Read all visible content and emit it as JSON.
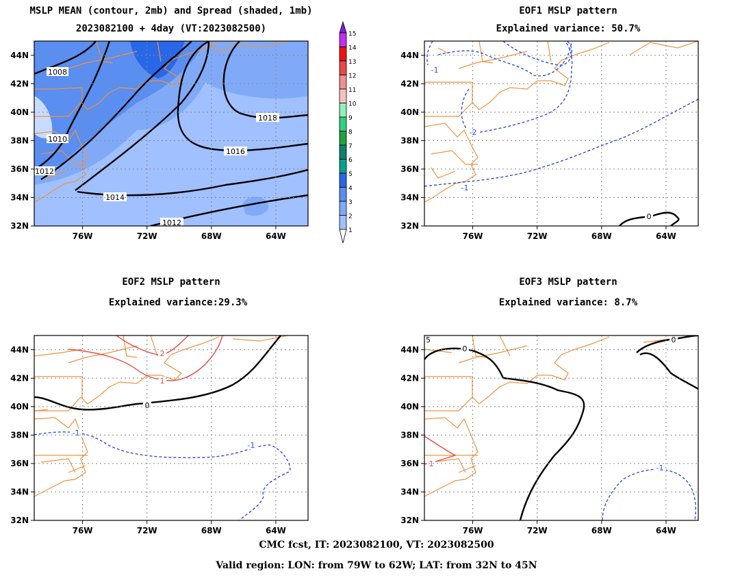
{
  "footer": {
    "line1": "CMC fcst, IT: 2023082100, VT: 2023082500",
    "line2": "Valid region: LON: from 79W to 62W; LAT: from 32N to 45N"
  },
  "colorbar": {
    "levels": [
      "1",
      "2",
      "3",
      "4",
      "5",
      "6",
      "7",
      "8",
      "9",
      "10",
      "11",
      "12",
      "13",
      "14",
      "15"
    ],
    "colors": [
      "#c8dcff",
      "#a0c0ff",
      "#80aaf8",
      "#5a8ef0",
      "#2868e8",
      "#08a090",
      "#108070",
      "#20a040",
      "#30d080",
      "#90f0c0",
      "#f8c0c0",
      "#f09090",
      "#e84848",
      "#f01010",
      "#c030f0",
      "#8020d0"
    ]
  },
  "chart_data": [
    {
      "type": "contour",
      "title": "MSLP MEAN (contour, 2mb) and Spread (shaded, 1mb)",
      "subtitle": "2023082100 + 4day (VT:2023082500)",
      "x_ticks": [
        "76W",
        "72W",
        "68W",
        "64W"
      ],
      "y_ticks": [
        "44N",
        "42N",
        "40N",
        "38N",
        "36N",
        "34N",
        "32N"
      ],
      "xlim": [
        -79,
        -62
      ],
      "ylim": [
        32,
        45
      ],
      "contour_labels": [
        "1008",
        "1010",
        "1012",
        "1014",
        "1016",
        "1018",
        "1012"
      ]
    },
    {
      "type": "contour",
      "title": "EOF1 MSLP pattern",
      "subtitle": "Explained variance: 50.7%",
      "x_ticks": [
        "76W",
        "72W",
        "68W",
        "64W"
      ],
      "y_ticks": [
        "44N",
        "42N",
        "40N",
        "38N",
        "36N",
        "34N",
        "32N"
      ],
      "xlim": [
        -79,
        -62
      ],
      "ylim": [
        32,
        45
      ],
      "contour_labels": [
        "-1",
        "-2",
        "-1",
        "0"
      ]
    },
    {
      "type": "contour",
      "title": "EOF2 MSLP pattern",
      "subtitle": "Explained variance:29.3%",
      "x_ticks": [
        "76W",
        "72W",
        "68W",
        "64W"
      ],
      "y_ticks": [
        "44N",
        "42N",
        "40N",
        "38N",
        "36N",
        "34N",
        "32N"
      ],
      "xlim": [
        -79,
        -62
      ],
      "ylim": [
        32,
        45
      ],
      "contour_labels": [
        "2",
        "1",
        "0",
        "-1",
        "-1"
      ]
    },
    {
      "type": "contour",
      "title": "EOF3 MSLP pattern",
      "subtitle": "Explained variance: 8.7%",
      "x_ticks": [
        "76W",
        "72W",
        "68W",
        "64W"
      ],
      "y_ticks": [
        "44N",
        "42N",
        "40N",
        "38N",
        "36N",
        "34N",
        "32N"
      ],
      "xlim": [
        -79,
        -62
      ],
      "ylim": [
        32,
        45
      ],
      "contour_labels": [
        "5",
        "0",
        "0",
        "1",
        "-1"
      ]
    }
  ]
}
